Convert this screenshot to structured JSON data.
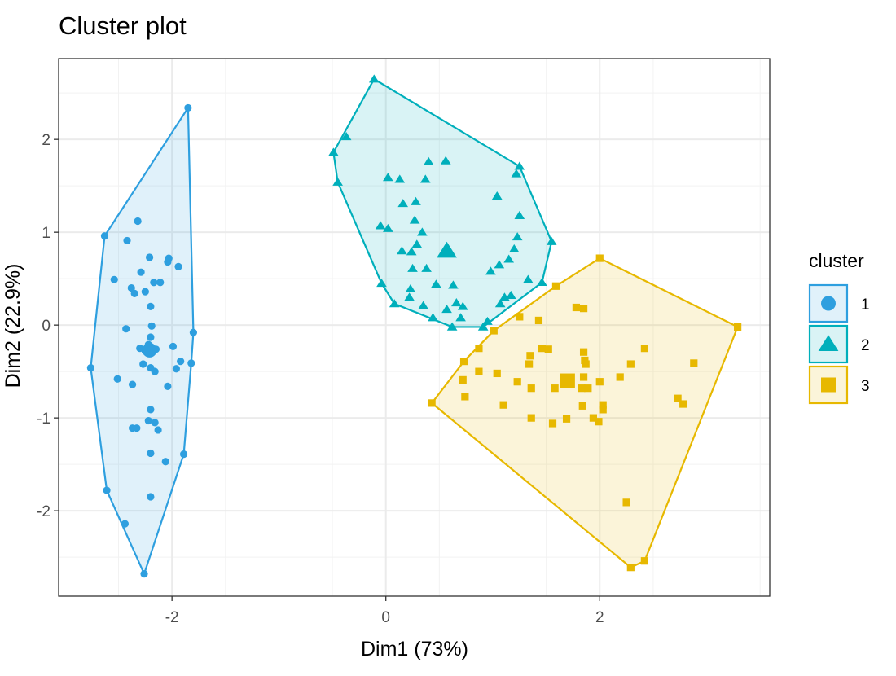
{
  "chart_data": {
    "type": "scatter",
    "title": "Cluster plot",
    "xlabel": "Dim1 (73%)",
    "ylabel": "Dim2 (22.9%)",
    "xlim": [
      -3.06,
      3.59
    ],
    "ylim": [
      -2.92,
      2.87
    ],
    "x_ticks": [
      -2,
      0,
      2
    ],
    "y_ticks": [
      -2,
      -1,
      0,
      1,
      2
    ],
    "grid": true,
    "legend": {
      "title": "cluster",
      "position": "right"
    },
    "series": [
      {
        "name": "1",
        "shape": "circle",
        "color": "#2E9FDF",
        "centroid": [
          -2.21,
          -0.27
        ],
        "points": [
          [
            -1.85,
            2.34
          ],
          [
            -2.63,
            0.96
          ],
          [
            -2.32,
            1.12
          ],
          [
            -2.42,
            0.91
          ],
          [
            -2.21,
            0.73
          ],
          [
            -2.04,
            0.68
          ],
          [
            -2.03,
            0.72
          ],
          [
            -1.94,
            0.63
          ],
          [
            -2.29,
            0.57
          ],
          [
            -2.38,
            0.4
          ],
          [
            -2.35,
            0.34
          ],
          [
            -2.25,
            0.36
          ],
          [
            -2.17,
            0.46
          ],
          [
            -2.11,
            0.46
          ],
          [
            -2.54,
            0.49
          ],
          [
            -2.2,
            0.2
          ],
          [
            -2.19,
            -0.01
          ],
          [
            -2.2,
            -0.13
          ],
          [
            -2.22,
            -0.21
          ],
          [
            -1.99,
            -0.23
          ],
          [
            -1.8,
            -0.08
          ],
          [
            -2.43,
            -0.04
          ],
          [
            -2.3,
            -0.25
          ],
          [
            -2.25,
            -0.28
          ],
          [
            -2.22,
            -0.29
          ],
          [
            -2.19,
            -0.27
          ],
          [
            -2.15,
            -0.26
          ],
          [
            -2.27,
            -0.42
          ],
          [
            -2.2,
            -0.46
          ],
          [
            -2.16,
            -0.5
          ],
          [
            -1.96,
            -0.47
          ],
          [
            -1.92,
            -0.39
          ],
          [
            -1.82,
            -0.41
          ],
          [
            -2.76,
            -0.46
          ],
          [
            -2.51,
            -0.58
          ],
          [
            -2.37,
            -0.64
          ],
          [
            -2.04,
            -0.66
          ],
          [
            -2.2,
            -0.91
          ],
          [
            -2.22,
            -1.03
          ],
          [
            -2.16,
            -1.05
          ],
          [
            -2.13,
            -1.13
          ],
          [
            -2.37,
            -1.11
          ],
          [
            -2.33,
            -1.11
          ],
          [
            -2.2,
            -1.38
          ],
          [
            -2.06,
            -1.47
          ],
          [
            -1.89,
            -1.39
          ],
          [
            -2.61,
            -1.78
          ],
          [
            -2.2,
            -1.85
          ],
          [
            -2.44,
            -2.14
          ],
          [
            -2.26,
            -2.68
          ]
        ]
      },
      {
        "name": "2",
        "shape": "triangle",
        "color": "#00AFBB",
        "centroid": [
          0.57,
          0.8
        ],
        "points": [
          [
            -0.11,
            2.65
          ],
          [
            -0.37,
            2.03
          ],
          [
            -0.49,
            1.86
          ],
          [
            -0.45,
            1.54
          ],
          [
            0.4,
            1.76
          ],
          [
            0.56,
            1.77
          ],
          [
            0.02,
            1.59
          ],
          [
            0.13,
            1.57
          ],
          [
            0.37,
            1.57
          ],
          [
            1.25,
            1.71
          ],
          [
            1.22,
            1.63
          ],
          [
            1.04,
            1.39
          ],
          [
            0.16,
            1.31
          ],
          [
            0.28,
            1.33
          ],
          [
            1.25,
            1.18
          ],
          [
            0.27,
            1.13
          ],
          [
            -0.05,
            1.07
          ],
          [
            0.02,
            1.04
          ],
          [
            0.34,
            1.0
          ],
          [
            1.23,
            0.95
          ],
          [
            1.55,
            0.9
          ],
          [
            0.29,
            0.87
          ],
          [
            0.15,
            0.8
          ],
          [
            0.24,
            0.79
          ],
          [
            1.2,
            0.82
          ],
          [
            1.15,
            0.71
          ],
          [
            1.06,
            0.65
          ],
          [
            0.98,
            0.58
          ],
          [
            0.25,
            0.61
          ],
          [
            0.38,
            0.61
          ],
          [
            -0.04,
            0.45
          ],
          [
            0.47,
            0.44
          ],
          [
            0.63,
            0.43
          ],
          [
            1.33,
            0.49
          ],
          [
            1.46,
            0.46
          ],
          [
            0.23,
            0.39
          ],
          [
            0.22,
            0.3
          ],
          [
            1.17,
            0.32
          ],
          [
            1.11,
            0.3
          ],
          [
            1.07,
            0.23
          ],
          [
            0.08,
            0.23
          ],
          [
            0.35,
            0.21
          ],
          [
            0.66,
            0.24
          ],
          [
            0.72,
            0.2
          ],
          [
            0.57,
            0.17
          ],
          [
            0.44,
            0.08
          ],
          [
            0.7,
            0.08
          ],
          [
            0.62,
            -0.02
          ],
          [
            0.91,
            -0.02
          ],
          [
            0.95,
            0.04
          ]
        ]
      },
      {
        "name": "3",
        "shape": "square",
        "color": "#E7B800",
        "centroid": [
          1.7,
          -0.6
        ],
        "points": [
          [
            2.0,
            0.72
          ],
          [
            1.59,
            0.42
          ],
          [
            3.29,
            -0.02
          ],
          [
            1.01,
            -0.06
          ],
          [
            0.87,
            -0.25
          ],
          [
            0.73,
            -0.39
          ],
          [
            0.43,
            -0.84
          ],
          [
            0.72,
            -0.59
          ],
          [
            0.74,
            -0.77
          ],
          [
            0.87,
            -0.5
          ],
          [
            1.04,
            -0.52
          ],
          [
            1.23,
            -0.61
          ],
          [
            1.36,
            -0.68
          ],
          [
            1.58,
            -0.68
          ],
          [
            1.35,
            -0.33
          ],
          [
            1.34,
            -0.42
          ],
          [
            1.46,
            -0.25
          ],
          [
            1.52,
            -0.26
          ],
          [
            1.25,
            0.09
          ],
          [
            1.43,
            0.05
          ],
          [
            1.78,
            0.19
          ],
          [
            1.85,
            0.18
          ],
          [
            1.85,
            -0.29
          ],
          [
            1.86,
            -0.38
          ],
          [
            1.87,
            -0.42
          ],
          [
            1.85,
            -0.56
          ],
          [
            1.83,
            -0.68
          ],
          [
            1.89,
            -0.68
          ],
          [
            2.0,
            -0.61
          ],
          [
            2.19,
            -0.56
          ],
          [
            2.29,
            -0.42
          ],
          [
            2.42,
            -0.25
          ],
          [
            2.88,
            -0.41
          ],
          [
            2.73,
            -0.79
          ],
          [
            2.78,
            -0.85
          ],
          [
            2.03,
            -0.86
          ],
          [
            2.03,
            -0.91
          ],
          [
            1.84,
            -0.87
          ],
          [
            1.1,
            -0.86
          ],
          [
            1.36,
            -1.0
          ],
          [
            1.56,
            -1.06
          ],
          [
            1.69,
            -1.01
          ],
          [
            1.94,
            -1.0
          ],
          [
            1.99,
            -1.04
          ],
          [
            2.25,
            -1.91
          ],
          [
            2.42,
            -2.54
          ],
          [
            2.29,
            -2.61
          ]
        ]
      }
    ]
  }
}
